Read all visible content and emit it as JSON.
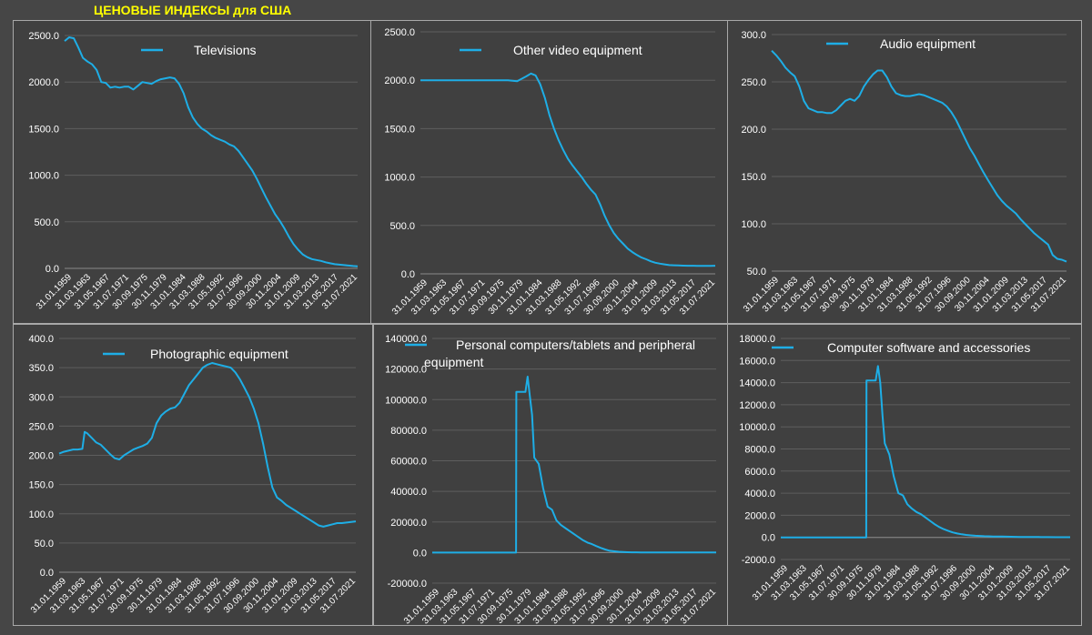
{
  "header": {
    "title": "ЦЕНОВЫЕ ИНДЕКСЫ для США"
  },
  "styles": {
    "background": "#464646",
    "panel_background": "#404040",
    "series_color": "#1eaee6",
    "title_color": "#ffff00"
  },
  "x_tick_labels": [
    "31.01.1959",
    "31.03.1963",
    "31.05.1967",
    "31.07.1971",
    "30.09.1975",
    "30.11.1979",
    "31.01.1984",
    "31.03.1988",
    "31.05.1992",
    "31.07.1996",
    "30.09.2000",
    "30.11.2004",
    "31.01.2009",
    "31.03.2013",
    "31.05.2017",
    "31.07.2021"
  ],
  "chart_data": [
    {
      "type": "line",
      "title": "Televisions",
      "series": [
        {
          "name": "Televisions",
          "x": [
            1959,
            1960,
            1961,
            1962,
            1963,
            1964,
            1965,
            1966,
            1967,
            1968,
            1969,
            1970,
            1971,
            1972,
            1973,
            1974,
            1975,
            1976,
            1977,
            1978,
            1979,
            1980,
            1981,
            1982,
            1983,
            1984,
            1985,
            1986,
            1987,
            1988,
            1989,
            1990,
            1991,
            1992,
            1993,
            1994,
            1995,
            1996,
            1997,
            1998,
            1999,
            2000,
            2001,
            2002,
            2003,
            2004,
            2005,
            2006,
            2007,
            2008,
            2009,
            2010,
            2011,
            2012,
            2013,
            2014,
            2015,
            2016,
            2017,
            2018,
            2019,
            2020,
            2021,
            2022,
            2023
          ],
          "values": [
            2440,
            2480,
            2470,
            2370,
            2260,
            2220,
            2190,
            2130,
            2000,
            1990,
            1940,
            1950,
            1940,
            1950,
            1950,
            1920,
            1960,
            2000,
            1990,
            1980,
            2010,
            2030,
            2040,
            2050,
            2040,
            1980,
            1880,
            1730,
            1620,
            1550,
            1500,
            1470,
            1430,
            1400,
            1380,
            1360,
            1330,
            1310,
            1260,
            1190,
            1120,
            1050,
            960,
            860,
            760,
            670,
            580,
            510,
            430,
            340,
            260,
            200,
            150,
            120,
            100,
            90,
            80,
            65,
            55,
            45,
            40,
            35,
            30,
            25,
            22
          ]
        }
      ],
      "ylim": [
        0,
        2500
      ],
      "yticks": [
        "0.0",
        "500.0",
        "1000.0",
        "1500.0",
        "2000.0",
        "2500.0"
      ],
      "xlim": [
        1959,
        2023
      ]
    },
    {
      "type": "line",
      "title": "Other video equipment",
      "series": [
        {
          "name": "Other video equipment",
          "x": [
            1959,
            1965,
            1970,
            1975,
            1978,
            1980,
            1982,
            1983,
            1984,
            1985,
            1986,
            1987,
            1988,
            1989,
            1990,
            1991,
            1992,
            1993,
            1994,
            1995,
            1996,
            1997,
            1998,
            1999,
            2000,
            2001,
            2002,
            2003,
            2004,
            2005,
            2006,
            2007,
            2008,
            2009,
            2010,
            2011,
            2012,
            2013,
            2014,
            2015,
            2016,
            2017,
            2018,
            2019,
            2020,
            2021,
            2022,
            2023
          ],
          "values": [
            2000,
            2000,
            2000,
            2000,
            2000,
            1990,
            2040,
            2070,
            2050,
            1960,
            1820,
            1640,
            1500,
            1380,
            1280,
            1190,
            1120,
            1060,
            1000,
            930,
            870,
            820,
            720,
            600,
            500,
            420,
            360,
            310,
            260,
            225,
            195,
            168,
            150,
            130,
            115,
            105,
            98,
            90,
            88,
            86,
            85,
            84,
            84,
            83,
            83,
            83,
            83,
            84
          ]
        }
      ],
      "ylim": [
        0,
        2500
      ],
      "yticks": [
        "0.0",
        "500.0",
        "1000.0",
        "1500.0",
        "2000.0",
        "2500.0"
      ],
      "xlim": [
        1959,
        2023
      ]
    },
    {
      "type": "line",
      "title": "Audio equipment",
      "series": [
        {
          "name": "Audio equipment",
          "x": [
            1959,
            1960,
            1961,
            1962,
            1963,
            1964,
            1965,
            1966,
            1967,
            1968,
            1969,
            1970,
            1971,
            1972,
            1973,
            1974,
            1975,
            1976,
            1977,
            1978,
            1979,
            1980,
            1981,
            1982,
            1983,
            1984,
            1985,
            1986,
            1987,
            1988,
            1989,
            1990,
            1991,
            1992,
            1993,
            1994,
            1995,
            1996,
            1997,
            1998,
            1999,
            2000,
            2001,
            2002,
            2003,
            2004,
            2005,
            2006,
            2007,
            2008,
            2009,
            2010,
            2011,
            2012,
            2013,
            2014,
            2015,
            2016,
            2017,
            2018,
            2019,
            2020,
            2021,
            2022,
            2023
          ],
          "values": [
            283,
            278,
            272,
            265,
            260,
            256,
            245,
            230,
            222,
            220,
            218,
            218,
            217,
            217,
            220,
            225,
            230,
            232,
            230,
            235,
            245,
            252,
            258,
            262,
            262,
            255,
            245,
            238,
            236,
            235,
            235,
            236,
            237,
            236,
            234,
            232,
            230,
            228,
            224,
            218,
            210,
            200,
            190,
            180,
            172,
            163,
            154,
            146,
            138,
            130,
            124,
            119,
            115,
            111,
            105,
            100,
            95,
            90,
            86,
            82,
            78,
            67,
            63,
            62,
            60
          ]
        }
      ],
      "ylim": [
        50,
        300
      ],
      "yticks": [
        "50.0",
        "100.0",
        "150.0",
        "200.0",
        "250.0",
        "300.0"
      ],
      "xlim": [
        1959,
        2023
      ]
    },
    {
      "type": "line",
      "title": "Photographic equipment",
      "series": [
        {
          "name": "Photographic equipment",
          "x": [
            1959,
            1960,
            1961,
            1962,
            1963,
            1964,
            1964.5,
            1965,
            1966,
            1967,
            1968,
            1969,
            1970,
            1971,
            1972,
            1973,
            1974,
            1975,
            1976,
            1977,
            1978,
            1979,
            1980,
            1981,
            1982,
            1983,
            1984,
            1985,
            1986,
            1987,
            1988,
            1989,
            1990,
            1991,
            1992,
            1993,
            1994,
            1995,
            1996,
            1997,
            1998,
            1999,
            2000,
            2001,
            2002,
            2003,
            2004,
            2005,
            2006,
            2007,
            2008,
            2009,
            2010,
            2011,
            2012,
            2013,
            2014,
            2015,
            2016,
            2017,
            2018,
            2019,
            2020,
            2021,
            2022,
            2023
          ],
          "values": [
            203,
            206,
            208,
            210,
            210,
            211,
            240,
            238,
            230,
            222,
            218,
            210,
            202,
            195,
            193,
            200,
            205,
            210,
            213,
            216,
            220,
            230,
            255,
            268,
            275,
            280,
            282,
            290,
            305,
            320,
            330,
            340,
            350,
            355,
            358,
            356,
            354,
            352,
            350,
            342,
            330,
            315,
            300,
            280,
            255,
            220,
            180,
            145,
            128,
            122,
            115,
            110,
            105,
            100,
            95,
            90,
            85,
            80,
            78,
            80,
            82,
            84,
            84,
            85,
            86,
            87
          ]
        }
      ],
      "ylim": [
        0,
        400
      ],
      "yticks": [
        "0.0",
        "50.0",
        "100.0",
        "150.0",
        "200.0",
        "250.0",
        "300.0",
        "350.0",
        "400.0"
      ],
      "xlim": [
        1959,
        2023
      ]
    },
    {
      "type": "line",
      "title": "Personal computers/tablets and peripheral equipment",
      "series": [
        {
          "name": "Personal computers/tablets and peripheral equipment",
          "x": [
            1959,
            1965,
            1970,
            1975,
            1977.9,
            1977.95,
            1980,
            1980.5,
            1981,
            1981.5,
            1982,
            1983,
            1984,
            1985,
            1986,
            1987,
            1988,
            1989,
            1990,
            1991,
            1992,
            1993,
            1994,
            1995,
            1996,
            1997,
            1998,
            1999,
            2000,
            2001,
            2002,
            2003,
            2004,
            2005,
            2006,
            2008,
            2010,
            2012,
            2014,
            2016,
            2018,
            2020,
            2023
          ],
          "values": [
            0,
            0,
            0,
            0,
            0,
            105000,
            105000,
            115000,
            102000,
            90000,
            62000,
            58000,
            42000,
            30000,
            28000,
            21000,
            18000,
            16000,
            14000,
            12000,
            10000,
            8000,
            6500,
            5500,
            4200,
            3000,
            2000,
            1200,
            800,
            500,
            350,
            250,
            180,
            140,
            110,
            80,
            60,
            45,
            35,
            28,
            22,
            18,
            15
          ]
        }
      ],
      "ylim": [
        -20000,
        140000
      ],
      "yticks": [
        "-20000.0",
        "0.0",
        "20000.0",
        "40000.0",
        "60000.0",
        "80000.0",
        "100000.0",
        "120000.0",
        "140000.0"
      ],
      "xlim": [
        1959,
        2023
      ]
    },
    {
      "type": "line",
      "title": "Computer software and accessories",
      "series": [
        {
          "name": "Computer software and accessories",
          "x": [
            1959,
            1965,
            1970,
            1975,
            1977.9,
            1977.95,
            1980,
            1980.5,
            1981,
            1981.5,
            1982,
            1983,
            1984,
            1985,
            1986,
            1987,
            1988,
            1989,
            1990,
            1991,
            1992,
            1993,
            1994,
            1995,
            1996,
            1997,
            1998,
            1999,
            2000,
            2001,
            2002,
            2003,
            2004,
            2005,
            2006,
            2008,
            2010,
            2012,
            2014,
            2016,
            2018,
            2020,
            2023
          ],
          "values": [
            0,
            0,
            0,
            0,
            0,
            14200,
            14200,
            15500,
            14000,
            11000,
            8500,
            7500,
            5500,
            4000,
            3800,
            3000,
            2600,
            2300,
            2100,
            1800,
            1500,
            1200,
            950,
            750,
            600,
            450,
            350,
            280,
            220,
            180,
            150,
            130,
            110,
            95,
            85,
            70,
            55,
            45,
            38,
            30,
            24,
            20,
            15
          ]
        }
      ],
      "ylim": [
        -2000,
        18000
      ],
      "yticks": [
        "-2000.0",
        "0.0",
        "2000.0",
        "4000.0",
        "6000.0",
        "8000.0",
        "10000.0",
        "12000.0",
        "14000.0",
        "16000.0",
        "18000.0"
      ],
      "xlim": [
        1959,
        2023
      ]
    }
  ]
}
